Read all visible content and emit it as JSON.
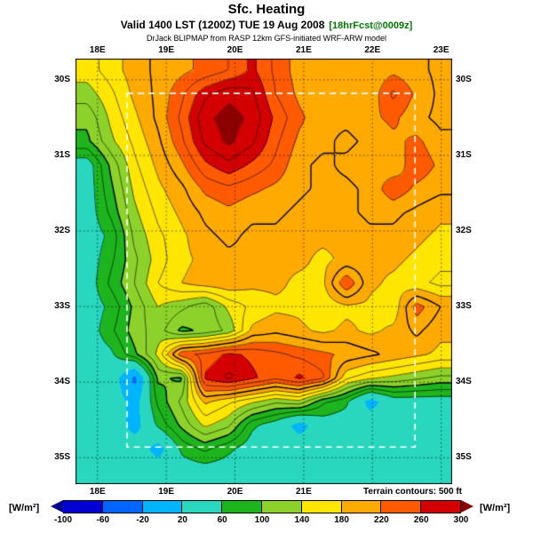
{
  "header": {
    "title": "Sfc. Heating",
    "valid_line": "Valid 1400 LST (1200Z) TUE 19 Aug 2008",
    "fcst_tag": "[18hrFcst@0009z]",
    "model_line": "DrJack BLIPMAP from RASP 12km GFS-initiated WRF-ARW model"
  },
  "footer": {
    "terrain_note": "Terrain contours: 500 ft",
    "units_label": "[W/m²]"
  },
  "chart_data": {
    "type": "heatmap",
    "title": "Sfc. Heating",
    "units": "W/m²",
    "description": "Surface heating filled contours over the Western Cape, South Africa, with terrain contour overlay, lat/lon dotted graticule and white dashed model domain box",
    "map_extent": {
      "lon_min": 17.68,
      "lon_max": 23.16,
      "lat_top_s": 29.72,
      "lat_bottom_s": 35.35
    },
    "graticule": {
      "lons": [
        18,
        19,
        20,
        21,
        22,
        23
      ],
      "lats_s": [
        30,
        31,
        32,
        33,
        34,
        35
      ]
    },
    "domain_box": {
      "lon_min": 18.43,
      "lon_max": 22.62,
      "lat_s_min": 30.18,
      "lat_s_max": 34.86
    },
    "contour_levels": {
      "min": 60,
      "max": 280,
      "interval": 20,
      "bold": [
        100,
        200
      ]
    },
    "axis_labels": {
      "top_lons": [
        {
          "text": "18E",
          "lon": 18
        },
        {
          "text": "19E",
          "lon": 19
        },
        {
          "text": "20E",
          "lon": 20
        },
        {
          "text": "21E",
          "lon": 21
        },
        {
          "text": "22E",
          "lon": 22
        },
        {
          "text": "23E",
          "lon": 23
        }
      ],
      "bottom_lons": [
        {
          "text": "18E",
          "lon": 18
        },
        {
          "text": "19E",
          "lon": 19
        },
        {
          "text": "20E",
          "lon": 20
        },
        {
          "text": "21E",
          "lon": 21
        }
      ],
      "side_lats": [
        {
          "text": "30S",
          "lat": 30
        },
        {
          "text": "31S",
          "lat": 31
        },
        {
          "text": "32S",
          "lat": 32
        },
        {
          "text": "33S",
          "lat": 33
        },
        {
          "text": "34S",
          "lat": 34
        },
        {
          "text": "35S",
          "lat": 35
        }
      ]
    },
    "colorbar": {
      "ticks": [
        -100,
        -60,
        -20,
        20,
        60,
        100,
        140,
        180,
        220,
        260,
        300
      ],
      "under": "#00008c",
      "over": "#8c0000",
      "colors": [
        "#0000d2",
        "#0064ff",
        "#00b4ff",
        "#28d7be",
        "#1eb41e",
        "#8cd22a",
        "#ffe600",
        "#ffaa00",
        "#ff5a00",
        "#d20000"
      ]
    },
    "grid": {
      "ncols": 16,
      "nrows": 18,
      "order": "rows north to south, columns west to east; ocean ~45 W/m²",
      "values": [
        [
          150,
          170,
          190,
          205,
          215,
          225,
          240,
          265,
          235,
          210,
          205,
          205,
          205,
          215,
          205,
          195
        ],
        [
          130,
          155,
          185,
          205,
          235,
          275,
          295,
          285,
          240,
          215,
          205,
          210,
          205,
          245,
          215,
          195
        ],
        [
          105,
          145,
          175,
          205,
          245,
          295,
          310,
          295,
          255,
          225,
          205,
          205,
          215,
          225,
          205,
          195
        ],
        [
          95,
          135,
          165,
          195,
          235,
          285,
          305,
          285,
          245,
          215,
          205,
          195,
          205,
          215,
          225,
          205
        ],
        [
          45,
          105,
          155,
          185,
          215,
          255,
          275,
          255,
          235,
          205,
          195,
          205,
          215,
          205,
          235,
          215
        ],
        [
          45,
          95,
          145,
          175,
          195,
          225,
          235,
          225,
          215,
          205,
          195,
          195,
          205,
          235,
          215,
          205
        ],
        [
          45,
          85,
          135,
          165,
          185,
          205,
          215,
          205,
          205,
          195,
          185,
          195,
          205,
          205,
          195,
          185
        ],
        [
          45,
          65,
          125,
          155,
          175,
          195,
          205,
          195,
          195,
          185,
          185,
          185,
          195,
          195,
          185,
          175
        ],
        [
          45,
          75,
          115,
          150,
          175,
          185,
          195,
          195,
          185,
          185,
          175,
          185,
          185,
          185,
          175,
          165
        ],
        [
          45,
          85,
          120,
          160,
          180,
          190,
          195,
          185,
          185,
          175,
          175,
          240,
          185,
          175,
          165,
          155
        ],
        [
          45,
          65,
          105,
          140,
          125,
          105,
          145,
          165,
          175,
          175,
          165,
          175,
          175,
          165,
          230,
          200
        ],
        [
          45,
          75,
          110,
          130,
          95,
          105,
          125,
          185,
          195,
          185,
          175,
          185,
          175,
          185,
          205,
          185
        ],
        [
          45,
          55,
          95,
          145,
          235,
          245,
          265,
          255,
          245,
          235,
          225,
          215,
          205,
          195,
          185,
          175
        ],
        [
          45,
          45,
          -30,
          105,
          95,
          265,
          285,
          265,
          245,
          265,
          245,
          165,
          145,
          135,
          125,
          115
        ],
        [
          45,
          45,
          5,
          85,
          125,
          185,
          165,
          145,
          125,
          135,
          85,
          65,
          5,
          45,
          45,
          45
        ],
        [
          45,
          45,
          5,
          65,
          105,
          145,
          125,
          65,
          45,
          5,
          45,
          45,
          45,
          45,
          45,
          45
        ],
        [
          45,
          45,
          45,
          5,
          65,
          85,
          65,
          45,
          45,
          45,
          45,
          45,
          45,
          45,
          45,
          45
        ],
        [
          45,
          45,
          45,
          45,
          45,
          45,
          45,
          45,
          45,
          45,
          45,
          45,
          45,
          45,
          45,
          45
        ]
      ]
    }
  }
}
